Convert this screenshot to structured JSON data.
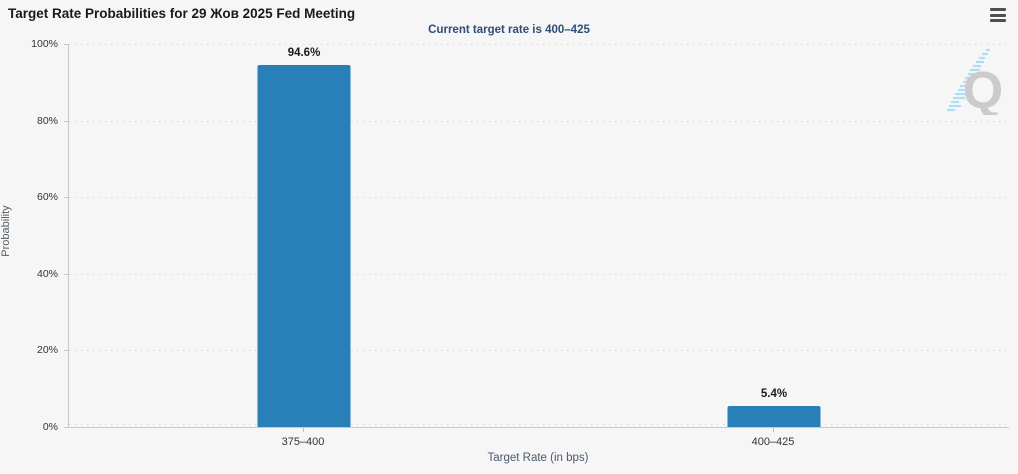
{
  "header": {
    "title": "Target Rate Probabilities for 29 Жов 2025 Fed Meeting"
  },
  "watermark": {
    "letter": "Q"
  },
  "colors": {
    "background": "#f6f6f6",
    "bar": "#2980b9",
    "subtitle_text": "#2f4d7a",
    "axis_title_text": "#4a5a70",
    "watermark_gray": "#c7c7c7",
    "watermark_blue": "#a8dcf0"
  },
  "chart_data": {
    "type": "bar",
    "title": "Target Rate Probabilities for 29 Жов 2025 Fed Meeting",
    "subtitle": "Current target rate is 400–425",
    "categories": [
      "375–400",
      "400–425"
    ],
    "values": [
      94.6,
      5.4
    ],
    "value_labels": [
      "94.6%",
      "5.4%"
    ],
    "xlabel": "Target Rate (in bps)",
    "ylabel": "Probability",
    "ylim": [
      0,
      100
    ],
    "yticks": [
      "0%",
      "20%",
      "40%",
      "60%",
      "80%",
      "100%"
    ],
    "grid": "dotted horizontal gridlines every 20%",
    "legend": "none",
    "bar_color": "#2980b9"
  }
}
